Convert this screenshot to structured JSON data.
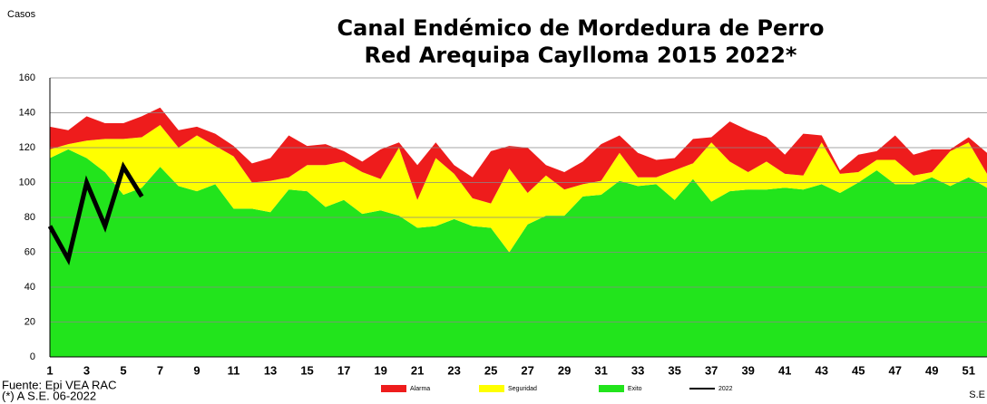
{
  "chart_data": {
    "type": "stacked-area",
    "title": "Canal Endémico de Mordedura de Perro",
    "subtitle": "Red Arequipa Caylloma 2015 2022*",
    "y_label": "Casos",
    "x_label": "S.E",
    "source": "Fuente: Epi VEA RAC",
    "footnote": "(*) A S.E. 06-2022",
    "categories": [
      "1",
      null,
      "3",
      null,
      "5",
      null,
      "7",
      null,
      "9",
      null,
      "11",
      null,
      "13",
      null,
      "15",
      null,
      "17",
      null,
      "19",
      null,
      "21",
      null,
      "23",
      null,
      "25",
      null,
      "27",
      null,
      "29",
      null,
      "31",
      null,
      "33",
      null,
      "35",
      null,
      "37",
      null,
      "39",
      null,
      "41",
      null,
      "43",
      null,
      "45",
      null,
      "47",
      null,
      "49",
      null,
      "51",
      null
    ],
    "series": [
      {
        "name": "Alarma",
        "color": "#ee1c1c",
        "values": [
          13,
          8,
          14,
          9,
          9,
          12,
          10,
          10,
          5,
          7,
          6,
          11,
          13,
          24,
          11,
          12,
          6,
          6,
          17,
          3,
          20,
          9,
          5,
          12,
          30,
          13,
          26,
          6,
          10,
          13,
          21,
          10,
          14,
          10,
          7,
          14,
          3,
          23,
          24,
          14,
          11,
          24,
          4,
          2,
          10,
          5,
          14,
          12,
          13,
          1,
          3,
          12
        ]
      },
      {
        "name": "Seguridad",
        "color": "#ffff00",
        "values": [
          5,
          3,
          10,
          19,
          32,
          29,
          24,
          22,
          32,
          22,
          30,
          15,
          18,
          7,
          15,
          24,
          22,
          24,
          18,
          39,
          16,
          39,
          26,
          16,
          14,
          48,
          18,
          23,
          15,
          7,
          8,
          16,
          5,
          4,
          17,
          9,
          34,
          17,
          10,
          16,
          8,
          8,
          24,
          11,
          6,
          6,
          14,
          5,
          3,
          20,
          20,
          8
        ]
      },
      {
        "name": "Exito",
        "color": "#22e41c",
        "values": [
          114,
          119,
          114,
          106,
          93,
          97,
          109,
          98,
          95,
          99,
          85,
          85,
          83,
          96,
          95,
          86,
          90,
          82,
          84,
          81,
          74,
          75,
          79,
          75,
          74,
          60,
          76,
          81,
          81,
          92,
          93,
          101,
          98,
          99,
          90,
          102,
          89,
          95,
          96,
          96,
          97,
          96,
          99,
          94,
          100,
          107,
          99,
          99,
          103,
          98,
          103,
          97
        ]
      },
      {
        "name": "2022",
        "color": "#000000",
        "type": "line",
        "values": [
          75,
          56,
          100,
          75,
          109,
          92,
          null,
          null,
          null,
          null,
          null,
          null,
          null,
          null,
          null,
          null,
          null,
          null,
          null,
          null,
          null,
          null,
          null,
          null,
          null,
          null,
          null,
          null,
          null,
          null,
          null,
          null,
          null,
          null,
          null,
          null,
          null,
          null,
          null,
          null,
          null,
          null,
          null,
          null,
          null,
          null,
          null,
          null,
          null,
          null,
          null,
          null
        ]
      }
    ],
    "ylim": [
      0,
      160
    ],
    "yticks": [
      0,
      20,
      40,
      60,
      80,
      100,
      120,
      140,
      160
    ],
    "grid": true
  }
}
